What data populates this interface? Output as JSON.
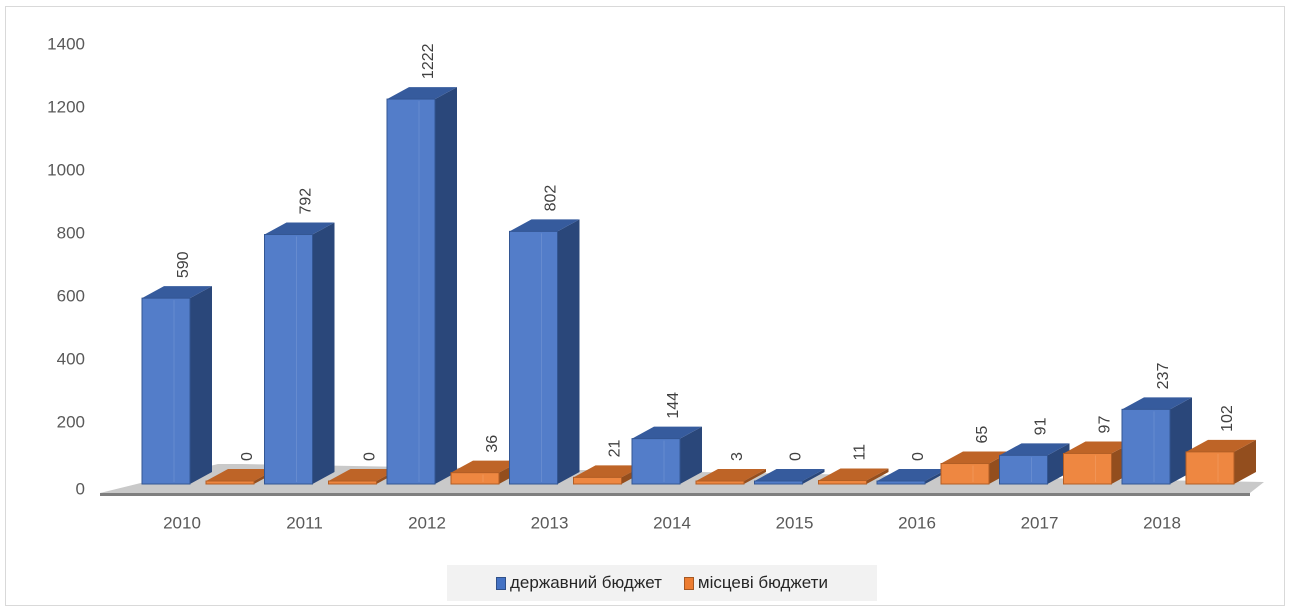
{
  "chart_data": {
    "type": "bar",
    "style": "3d-clustered-column",
    "categories": [
      "2010",
      "2011",
      "2012",
      "2013",
      "2014",
      "2015",
      "2016",
      "2017",
      "2018"
    ],
    "series": [
      {
        "name": "державний бюджет",
        "color": "#4472c4",
        "values": [
          590,
          792,
          1222,
          802,
          144,
          0,
          0,
          91,
          237
        ],
        "labels": [
          "590",
          "792",
          "1222",
          "802",
          "144",
          "0",
          "0",
          "91",
          "237"
        ]
      },
      {
        "name": "місцеві бюджети",
        "color": "#ed7d31",
        "values": [
          0,
          0,
          36,
          21,
          3,
          11,
          65,
          97,
          102
        ],
        "labels": [
          "0",
          "0",
          "36",
          "21",
          "3",
          "11",
          "65",
          "97",
          "102"
        ]
      }
    ],
    "y_ticks": [
      "0",
      "200",
      "400",
      "600",
      "800",
      "1000",
      "1200",
      "1400"
    ],
    "ylim": [
      0,
      1400
    ],
    "title": "",
    "xlabel": "",
    "ylabel": "",
    "grid": false,
    "legend_position": "bottom",
    "data_label_orientation": "vertical"
  }
}
